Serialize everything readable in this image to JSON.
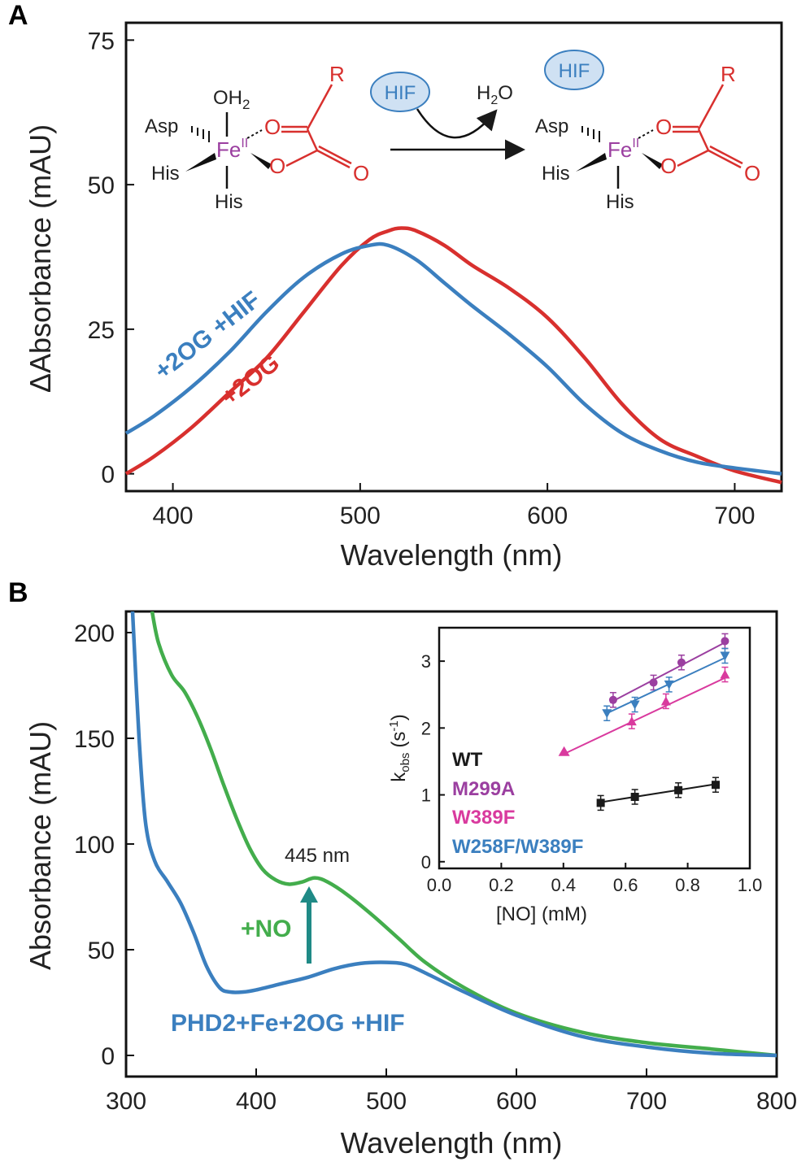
{
  "panels": {
    "a_letter": "A",
    "b_letter": "B"
  },
  "colors": {
    "blue": "#3b7fbf",
    "red": "#d8302e",
    "green": "#43ad4c",
    "teal": "#1f8a86",
    "purple": "#9b3fa0",
    "magenta": "#d93a9e",
    "black": "#1a1a1a"
  },
  "scheme": {
    "asp": "Asp",
    "his1": "His",
    "his2": "His",
    "oh2": "OH",
    "oh2_sub": "2",
    "fe": "Fe",
    "fe_sup": "II",
    "o1": "O",
    "o2": "O",
    "o3": "O",
    "r": "R",
    "hif_left": "HIF",
    "h2o_h": "H",
    "h2o_sub": "2",
    "h2o_o": "O",
    "hif_right": "HIF",
    "asp_r": "Asp",
    "his1_r": "His",
    "his2_r": "His",
    "fe_r": "Fe",
    "fe_sup_r": "II",
    "o1_r": "O",
    "o2_r": "O",
    "o3_r": "O",
    "r_r": "R"
  },
  "chart_data": [
    {
      "panel": "A",
      "type": "line",
      "xlabel": "Wavelength (nm)",
      "ylabel": "ΔAbsorbance (mAU)",
      "xlim": [
        375,
        725
      ],
      "ylim": [
        -3,
        78
      ],
      "xticks": [
        400,
        500,
        600,
        700
      ],
      "yticks": [
        0,
        25,
        50,
        75
      ],
      "series": [
        {
          "name": "+2OG",
          "color": "#d8302e",
          "x": [
            375,
            390,
            410,
            430,
            450,
            470,
            490,
            505,
            515,
            522,
            530,
            545,
            560,
            580,
            600,
            620,
            640,
            660,
            680,
            700,
            725
          ],
          "y": [
            0,
            3,
            8,
            14,
            20,
            28,
            36,
            40.5,
            42,
            42.5,
            42,
            39.5,
            36,
            32,
            27,
            20,
            12,
            6,
            3,
            0.5,
            -1.5
          ]
        },
        {
          "name": "+2OG +HIF",
          "color": "#3b7fbf",
          "x": [
            375,
            390,
            410,
            430,
            450,
            470,
            490,
            505,
            515,
            530,
            545,
            560,
            580,
            600,
            620,
            640,
            660,
            680,
            700,
            725
          ],
          "y": [
            7,
            10,
            15,
            21,
            28,
            34,
            38,
            39.5,
            39.5,
            37,
            33,
            29,
            24,
            18.5,
            12,
            7,
            4,
            2,
            1,
            0
          ]
        }
      ]
    },
    {
      "panel": "B",
      "type": "line",
      "xlabel": "Wavelength (nm)",
      "ylabel": "Absorbance (mAU)",
      "xlim": [
        300,
        800
      ],
      "ylim": [
        -10,
        210
      ],
      "xticks": [
        300,
        400,
        500,
        600,
        700,
        800
      ],
      "yticks": [
        0,
        50,
        100,
        150,
        200
      ],
      "annotation": "445 nm",
      "series": [
        {
          "name": "+NO",
          "color": "#43ad4c",
          "x": [
            320,
            325,
            335,
            345,
            355,
            365,
            375,
            385,
            395,
            405,
            415,
            425,
            435,
            445,
            455,
            470,
            490,
            510,
            530,
            560,
            600,
            650,
            700,
            750,
            800
          ],
          "y": [
            210,
            195,
            180,
            172,
            160,
            145,
            128,
            112,
            98,
            88,
            83,
            81,
            82,
            84,
            82,
            76,
            66,
            55,
            44,
            32,
            20,
            11,
            6,
            3,
            0
          ]
        },
        {
          "name": "PHD2+Fe+2OG +HIF",
          "color": "#3b7fbf",
          "x": [
            305,
            310,
            315,
            322,
            332,
            342,
            352,
            362,
            372,
            380,
            390,
            400,
            420,
            440,
            460,
            480,
            500,
            515,
            530,
            560,
            600,
            650,
            700,
            750,
            800
          ],
          "y": [
            210,
            150,
            110,
            92,
            82,
            72,
            58,
            42,
            32,
            30,
            30,
            31,
            34,
            37,
            41,
            43.5,
            44,
            43,
            39,
            30,
            19,
            9,
            4,
            1,
            0
          ]
        }
      ]
    },
    {
      "panel": "B-inset",
      "type": "scatter",
      "xlabel": "[NO] (mM)",
      "ylabel": "k",
      "ylabel_sub": "obs",
      "ylabel_unit": "(s",
      "ylabel_exp": "-1",
      "ylabel_close": ")",
      "xlim": [
        0.0,
        1.0
      ],
      "ylim": [
        -0.1,
        3.5
      ],
      "xticks": [
        0.0,
        0.2,
        0.4,
        0.6,
        0.8,
        1.0
      ],
      "yticks": [
        0,
        1,
        2,
        3
      ],
      "series": [
        {
          "name": "WT",
          "color": "#1a1a1a",
          "marker": "square",
          "x": [
            0.52,
            0.63,
            0.77,
            0.89
          ],
          "y": [
            0.88,
            0.97,
            1.07,
            1.15
          ],
          "fit": [
            [
              0.52,
              0.89
            ],
            [
              0.89,
              1.16
            ]
          ]
        },
        {
          "name": "M299A",
          "color": "#9b3fa0",
          "marker": "circle",
          "x": [
            0.56,
            0.69,
            0.78,
            0.92
          ],
          "y": [
            2.42,
            2.68,
            2.98,
            3.3
          ],
          "fit": [
            [
              0.55,
              2.38
            ],
            [
              0.92,
              3.28
            ]
          ]
        },
        {
          "name": "W389F",
          "color": "#d93a9e",
          "marker": "triangle-up",
          "x": [
            0.62,
            0.73,
            0.92
          ],
          "y": [
            2.1,
            2.4,
            2.8
          ],
          "fit": [
            [
              0.41,
              1.63
            ],
            [
              0.92,
              2.75
            ]
          ]
        },
        {
          "name": "W258F/W389F",
          "color": "#3b7fbf",
          "marker": "triangle-down",
          "x": [
            0.54,
            0.63,
            0.74,
            0.92
          ],
          "y": [
            2.22,
            2.35,
            2.65,
            3.08
          ],
          "fit": [
            [
              0.54,
              2.22
            ],
            [
              0.92,
              3.05
            ]
          ]
        }
      ]
    }
  ]
}
